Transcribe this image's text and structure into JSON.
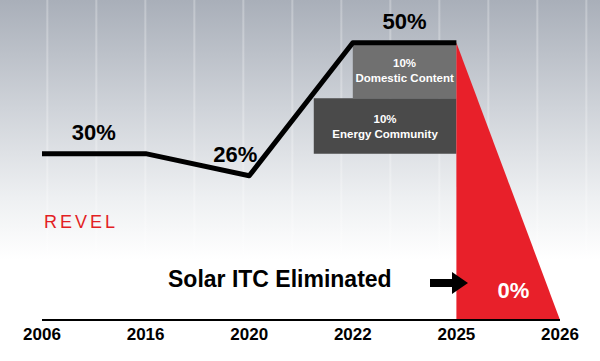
{
  "chart_data": {
    "type": "line",
    "categories": [
      "2006",
      "2016",
      "2020",
      "2022",
      "2025",
      "2026"
    ],
    "values": [
      30,
      30,
      26,
      50,
      50,
      0
    ],
    "value_labels": [
      "30%",
      null,
      "26%",
      "50%",
      null,
      "0%"
    ],
    "data_labels": true,
    "colors": [
      "#000000",
      "#000000",
      "#000000",
      "#000000",
      "#000000",
      "#e8202a"
    ],
    "ylim": [
      0,
      55
    ],
    "tick_labels": "x",
    "grid": false,
    "stack": {
      "base": 30,
      "segments": [
        {
          "label": "10% Energy Community",
          "value": 10,
          "color": "#4a4a4a"
        },
        {
          "label": "10% Domestic Content",
          "value": 10,
          "color": "#707070"
        }
      ]
    },
    "annotation": "Solar ITC Eliminated",
    "logo": "REVEL"
  }
}
